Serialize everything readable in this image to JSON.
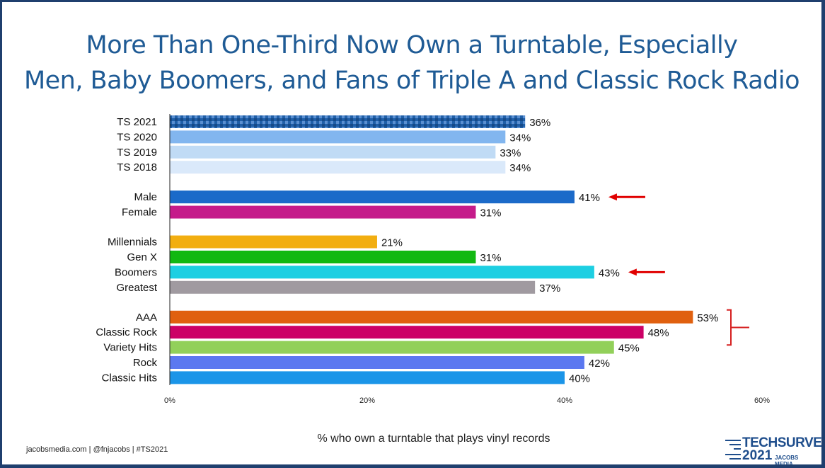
{
  "title_lines": [
    "More Than One-Third Now Own a Turntable, Especially",
    "Men, Baby Boomers, and Fans of Triple A and Classic Rock Radio"
  ],
  "footer": "jacobsmedia.com   |   @fnjacobs   |   #TS2021",
  "logo": {
    "line1": "TECHSURVEY",
    "line2": "2021",
    "line3": "JACOBS MEDIA"
  },
  "chart_data": {
    "type": "bar",
    "orientation": "horizontal",
    "title": "More Than One-Third Now Own a Turntable, Especially Men, Baby Boomers, and Fans of Triple A and Classic Rock Radio",
    "xlabel": "% who own a turntable that plays vinyl records",
    "xlim": [
      0,
      60
    ],
    "xticks": [
      "0%",
      "20%",
      "40%",
      "60%"
    ],
    "tick_values": [
      0,
      20,
      40,
      60
    ],
    "groups": [
      [
        {
          "label": "TS 2021",
          "value": 36,
          "color": "#1f5fa8",
          "pattern": true
        },
        {
          "label": "TS 2020",
          "value": 34,
          "color": "#82b6ef"
        },
        {
          "label": "TS 2019",
          "value": 33,
          "color": "#c0dbf5"
        },
        {
          "label": "TS 2018",
          "value": 34,
          "color": "#dae9fa"
        }
      ],
      [
        {
          "label": "Male",
          "value": 41,
          "color": "#1b6ac9",
          "arrow": true
        },
        {
          "label": "Female",
          "value": 31,
          "color": "#c51b8a"
        }
      ],
      [
        {
          "label": "Millennials",
          "value": 21,
          "color": "#f2ae10"
        },
        {
          "label": "Gen X",
          "value": 31,
          "color": "#12b812"
        },
        {
          "label": "Boomers",
          "value": 43,
          "color": "#1dcfe2",
          "arrow": true
        },
        {
          "label": "Greatest",
          "value": 37,
          "color": "#a09aa0"
        }
      ],
      [
        {
          "label": "AAA",
          "value": 53,
          "color": "#e0600f",
          "bracket": true
        },
        {
          "label": "Classic Rock",
          "value": 48,
          "color": "#cc0066",
          "bracket": true
        },
        {
          "label": "Variety Hits",
          "value": 45,
          "color": "#92d05a"
        },
        {
          "label": "Rock",
          "value": 42,
          "color": "#5b78f0"
        },
        {
          "label": "Classic Hits",
          "value": 40,
          "color": "#1b95e8"
        }
      ]
    ],
    "annotation_color": "#e00000"
  }
}
